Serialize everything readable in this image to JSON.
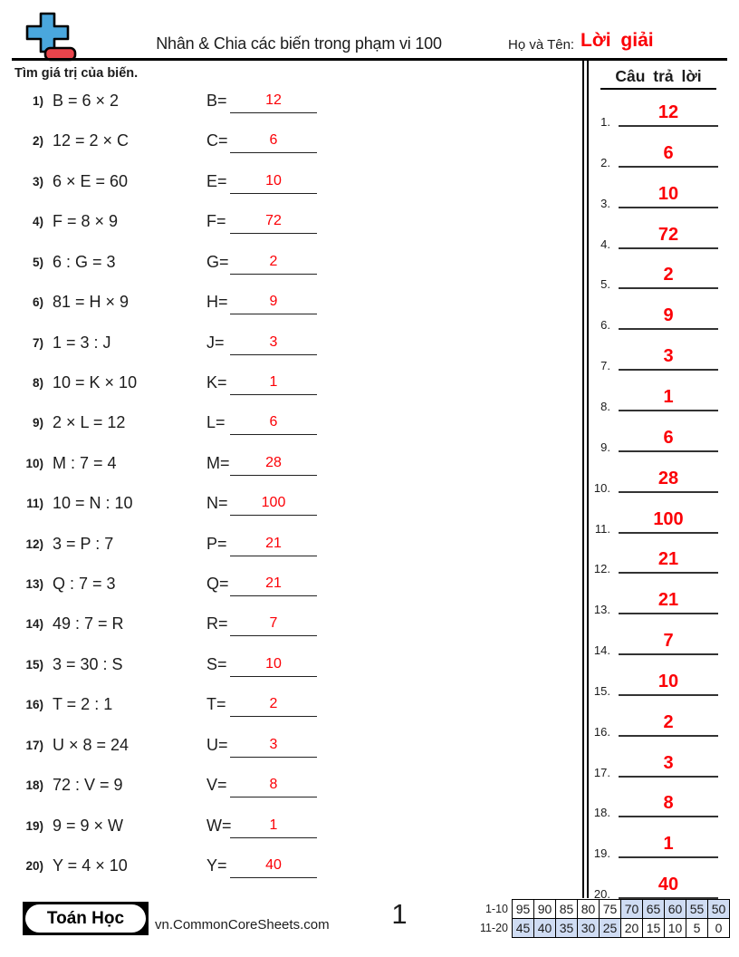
{
  "header": {
    "title": "Nhân & Chia các biến trong phạm vi 100",
    "name_label": "Họ và Tên:",
    "name_value": "Lời giải",
    "instruction": "Tìm giá trị của biến."
  },
  "answers_panel": {
    "title": "Câu trả lời",
    "items": [
      {
        "num": "1.",
        "value": "12"
      },
      {
        "num": "2.",
        "value": "6"
      },
      {
        "num": "3.",
        "value": "10"
      },
      {
        "num": "4.",
        "value": "72"
      },
      {
        "num": "5.",
        "value": "2"
      },
      {
        "num": "6.",
        "value": "9"
      },
      {
        "num": "7.",
        "value": "3"
      },
      {
        "num": "8.",
        "value": "1"
      },
      {
        "num": "9.",
        "value": "6"
      },
      {
        "num": "10.",
        "value": "28"
      },
      {
        "num": "11.",
        "value": "100"
      },
      {
        "num": "12.",
        "value": "21"
      },
      {
        "num": "13.",
        "value": "21"
      },
      {
        "num": "14.",
        "value": "7"
      },
      {
        "num": "15.",
        "value": "10"
      },
      {
        "num": "16.",
        "value": "2"
      },
      {
        "num": "17.",
        "value": "3"
      },
      {
        "num": "18.",
        "value": "8"
      },
      {
        "num": "19.",
        "value": "1"
      },
      {
        "num": "20.",
        "value": "40"
      }
    ]
  },
  "problems": [
    {
      "num": "1)",
      "equation": "B = 6 × 2",
      "var": "B=",
      "answer": "12"
    },
    {
      "num": "2)",
      "equation": "12 = 2 × C",
      "var": "C=",
      "answer": "6"
    },
    {
      "num": "3)",
      "equation": "6 × E = 60",
      "var": "E=",
      "answer": "10"
    },
    {
      "num": "4)",
      "equation": "F = 8 × 9",
      "var": "F=",
      "answer": "72"
    },
    {
      "num": "5)",
      "equation": "6 : G = 3",
      "var": "G=",
      "answer": "2"
    },
    {
      "num": "6)",
      "equation": "81 = H × 9",
      "var": "H=",
      "answer": "9"
    },
    {
      "num": "7)",
      "equation": "1 = 3 : J",
      "var": "J=",
      "answer": "3"
    },
    {
      "num": "8)",
      "equation": "10 = K × 10",
      "var": "K=",
      "answer": "1"
    },
    {
      "num": "9)",
      "equation": "2 × L = 12",
      "var": "L=",
      "answer": "6"
    },
    {
      "num": "10)",
      "equation": "M : 7 = 4",
      "var": "M=",
      "answer": "28"
    },
    {
      "num": "11)",
      "equation": "10 = N : 10",
      "var": "N=",
      "answer": "100"
    },
    {
      "num": "12)",
      "equation": "3 = P : 7",
      "var": "P=",
      "answer": "21"
    },
    {
      "num": "13)",
      "equation": "Q : 7 = 3",
      "var": "Q=",
      "answer": "21"
    },
    {
      "num": "14)",
      "equation": "49 : 7 = R",
      "var": "R=",
      "answer": "7"
    },
    {
      "num": "15)",
      "equation": "3 = 30 : S",
      "var": "S=",
      "answer": "10"
    },
    {
      "num": "16)",
      "equation": "T = 2 : 1",
      "var": "T=",
      "answer": "2"
    },
    {
      "num": "17)",
      "equation": "U × 8 = 24",
      "var": "U=",
      "answer": "3"
    },
    {
      "num": "18)",
      "equation": "72 : V = 9",
      "var": "V=",
      "answer": "8"
    },
    {
      "num": "19)",
      "equation": "9 = 9 × W",
      "var": "W=",
      "answer": "1"
    },
    {
      "num": "20)",
      "equation": "Y = 4 × 10",
      "var": "Y=",
      "answer": "40"
    }
  ],
  "footer": {
    "brand": "Toán Học",
    "site": "vn.CommonCoreSheets.com",
    "page": "1",
    "grade_table": {
      "rows": [
        {
          "label": "1-10",
          "cells": [
            {
              "v": "95",
              "shaded": false
            },
            {
              "v": "90",
              "shaded": false
            },
            {
              "v": "85",
              "shaded": false
            },
            {
              "v": "80",
              "shaded": false
            },
            {
              "v": "75",
              "shaded": false
            },
            {
              "v": "70",
              "shaded": true
            },
            {
              "v": "65",
              "shaded": true
            },
            {
              "v": "60",
              "shaded": true
            },
            {
              "v": "55",
              "shaded": true
            },
            {
              "v": "50",
              "shaded": true
            }
          ]
        },
        {
          "label": "11-20",
          "cells": [
            {
              "v": "45",
              "shaded": true
            },
            {
              "v": "40",
              "shaded": true
            },
            {
              "v": "35",
              "shaded": true
            },
            {
              "v": "30",
              "shaded": true
            },
            {
              "v": "25",
              "shaded": true
            },
            {
              "v": "20",
              "shaded": false
            },
            {
              "v": "15",
              "shaded": false
            },
            {
              "v": "10",
              "shaded": false
            },
            {
              "v": "5",
              "shaded": false
            },
            {
              "v": "0",
              "shaded": false
            }
          ]
        }
      ]
    }
  },
  "colors": {
    "answer_red": "#fb0006",
    "logo_blue": "#4aa7dd",
    "logo_red": "#e8444b",
    "table_shade": "#cfdcf3"
  }
}
